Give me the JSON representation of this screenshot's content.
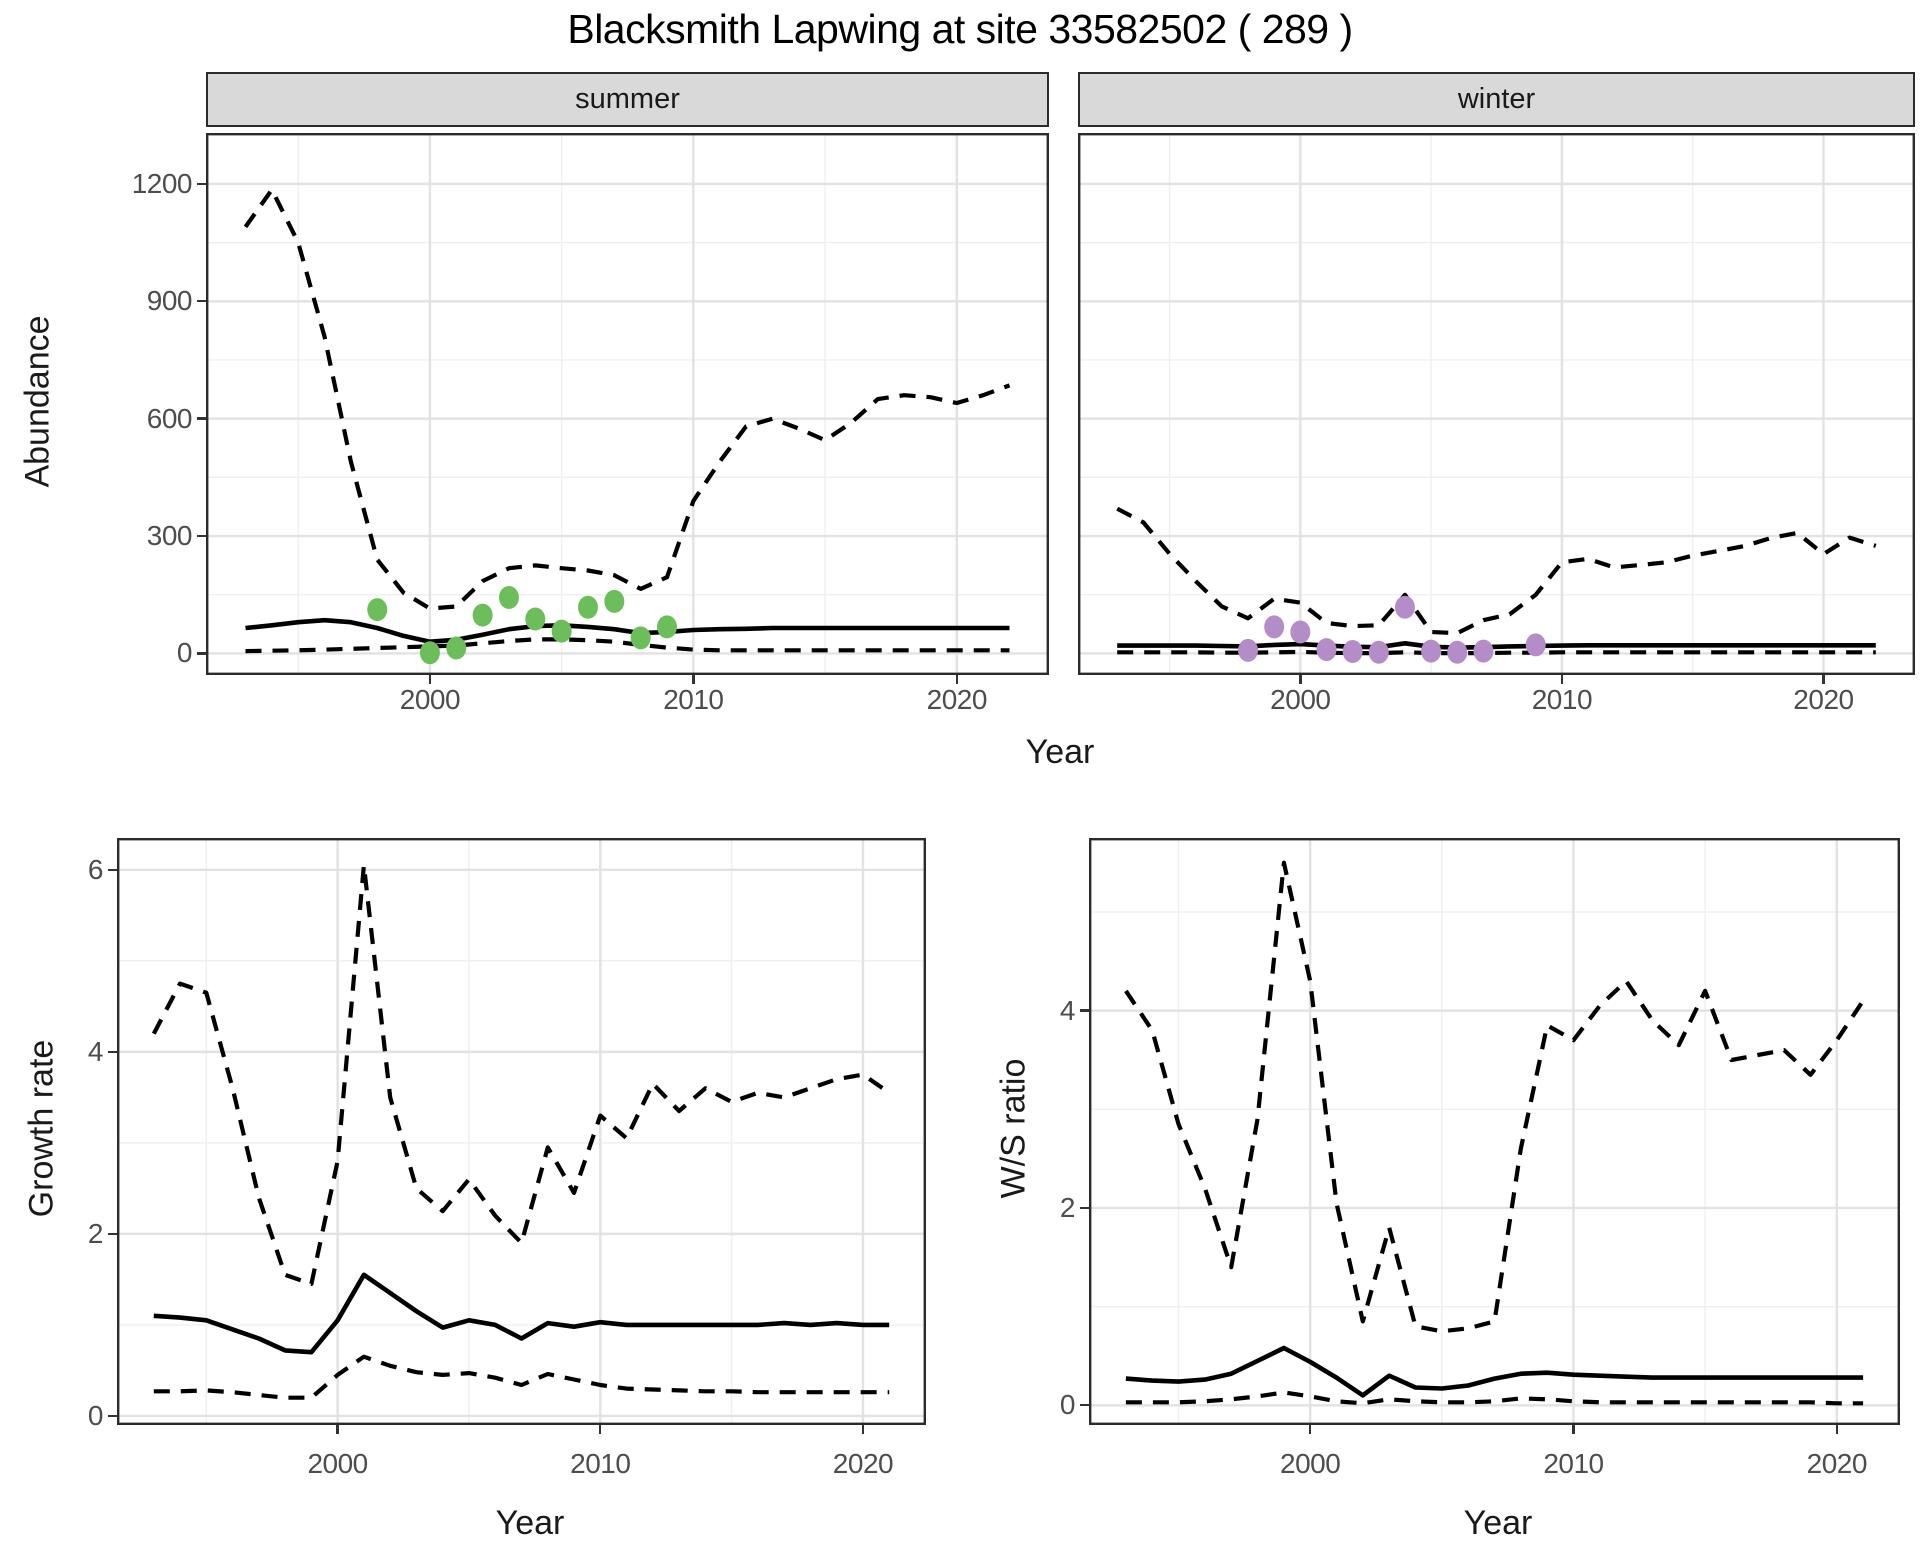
{
  "title": "Blacksmith Lapwing at site 33582502 ( 289 )",
  "colors": {
    "summer_points": "#6cbe5b",
    "winter_points": "#b48cc8",
    "line": "#000000",
    "grid_major": "#e2e2e2",
    "grid_minor": "#efefef",
    "panel_border": "#2b2b2b",
    "strip_bg": "#d9d9d9",
    "axis_text": "#4d4d4d"
  },
  "chart_data": [
    {
      "id": "abundance-summer",
      "type": "line",
      "facet_label": "summer",
      "xlabel": "Year",
      "ylabel": "Abundance",
      "xlim": [
        1991.5,
        2023.5
      ],
      "ylim": [
        -55,
        1330
      ],
      "x_ticks": [
        2000,
        2010,
        2020
      ],
      "x_minor": [
        1995,
        2005,
        2015
      ],
      "y_ticks": [
        0,
        300,
        600,
        900,
        1200
      ],
      "y_minor": [
        150,
        450,
        750,
        1050
      ],
      "x": [
        1993,
        1994,
        1995,
        1996,
        1997,
        1998,
        1999,
        2000,
        2001,
        2002,
        2003,
        2004,
        2005,
        2006,
        2007,
        2008,
        2009,
        2010,
        2011,
        2012,
        2013,
        2014,
        2015,
        2016,
        2017,
        2018,
        2019,
        2020,
        2021,
        2022
      ],
      "series": [
        {
          "name": "upper_95ci",
          "style": "dashed",
          "values": [
            1090,
            1185,
            1050,
            810,
            490,
            240,
            155,
            115,
            120,
            185,
            218,
            225,
            218,
            212,
            200,
            165,
            195,
            390,
            490,
            580,
            600,
            575,
            545,
            590,
            650,
            660,
            655,
            640,
            660,
            685
          ]
        },
        {
          "name": "median",
          "style": "solid",
          "values": [
            65,
            72,
            80,
            85,
            80,
            65,
            45,
            30,
            35,
            48,
            62,
            70,
            72,
            68,
            62,
            52,
            55,
            60,
            62,
            63,
            65,
            65,
            65,
            65,
            65,
            65,
            65,
            65,
            65,
            65
          ]
        },
        {
          "name": "lower_95ci",
          "style": "dashed",
          "values": [
            6,
            7,
            8,
            10,
            12,
            14,
            16,
            18,
            20,
            26,
            32,
            36,
            36,
            34,
            30,
            22,
            15,
            10,
            8,
            8,
            8,
            8,
            8,
            8,
            8,
            8,
            8,
            8,
            8,
            8
          ]
        }
      ],
      "points": {
        "name": "observed-counts-summer",
        "color_key": "summer_points",
        "x": [
          1998,
          2000,
          2001,
          2002,
          2003,
          2004,
          2005,
          2006,
          2007,
          2008,
          2009
        ],
        "y": [
          112,
          2,
          14,
          98,
          143,
          88,
          57,
          118,
          133,
          40,
          68
        ]
      }
    },
    {
      "id": "abundance-winter",
      "type": "line",
      "facet_label": "winter",
      "xlabel": "Year",
      "ylabel": "Abundance",
      "xlim": [
        1991.5,
        2023.5
      ],
      "ylim": [
        -55,
        1330
      ],
      "x_ticks": [
        2000,
        2010,
        2020
      ],
      "x_minor": [
        1995,
        2005,
        2015
      ],
      "y_ticks": [
        0,
        300,
        600,
        900,
        1200
      ],
      "y_minor": [
        150,
        450,
        750,
        1050
      ],
      "x": [
        1993,
        1994,
        1995,
        1996,
        1997,
        1998,
        1999,
        2000,
        2001,
        2002,
        2003,
        2004,
        2005,
        2006,
        2007,
        2008,
        2009,
        2010,
        2011,
        2012,
        2013,
        2014,
        2015,
        2016,
        2017,
        2018,
        2019,
        2020,
        2021,
        2022
      ],
      "series": [
        {
          "name": "upper_95ci",
          "style": "dashed",
          "values": [
            370,
            335,
            255,
            185,
            120,
            90,
            140,
            130,
            78,
            70,
            72,
            150,
            55,
            52,
            85,
            100,
            150,
            233,
            242,
            220,
            226,
            233,
            250,
            262,
            275,
            295,
            308,
            254,
            296,
            275
          ]
        },
        {
          "name": "median",
          "style": "solid",
          "values": [
            20,
            20,
            20,
            20,
            19,
            18,
            22,
            24,
            20,
            17,
            16,
            26,
            17,
            15,
            16,
            18,
            19,
            20,
            21,
            21,
            21,
            21,
            21,
            21,
            21,
            21,
            21,
            21,
            21,
            21
          ]
        },
        {
          "name": "lower_95ci",
          "style": "dashed",
          "values": [
            3,
            3,
            3,
            3,
            2,
            2,
            3,
            4,
            2,
            1,
            1,
            3,
            1,
            1,
            1,
            2,
            2,
            3,
            3,
            3,
            3,
            3,
            3,
            3,
            3,
            3,
            3,
            3,
            3,
            3
          ]
        }
      ],
      "points": {
        "name": "observed-counts-winter",
        "color_key": "winter_points",
        "x": [
          1998,
          1999,
          2000,
          2001,
          2002,
          2003,
          2004,
          2005,
          2006,
          2007,
          2009
        ],
        "y": [
          8,
          68,
          55,
          10,
          5,
          3,
          118,
          6,
          3,
          6,
          22
        ]
      }
    },
    {
      "id": "growth-rate",
      "type": "line",
      "facet_label": "",
      "xlabel": "Year",
      "ylabel": "Growth rate",
      "xlim": [
        1991.6,
        2022.4
      ],
      "ylim": [
        -0.1,
        6.35
      ],
      "x_ticks": [
        2000,
        2010,
        2020
      ],
      "x_minor": [
        1995,
        2005,
        2015
      ],
      "y_ticks": [
        0,
        2,
        4,
        6
      ],
      "y_minor": [
        1,
        3,
        5
      ],
      "x": [
        1993,
        1994,
        1995,
        1996,
        1997,
        1998,
        1999,
        2000,
        2001,
        2002,
        2003,
        2004,
        2005,
        2006,
        2007,
        2008,
        2009,
        2010,
        2011,
        2012,
        2013,
        2014,
        2015,
        2016,
        2017,
        2018,
        2019,
        2020,
        2021
      ],
      "series": [
        {
          "name": "upper_95ci",
          "style": "dashed",
          "values": [
            4.2,
            4.75,
            4.65,
            3.6,
            2.4,
            1.55,
            1.45,
            2.8,
            6.05,
            3.5,
            2.5,
            2.25,
            2.6,
            2.2,
            1.9,
            2.95,
            2.45,
            3.3,
            3.05,
            3.65,
            3.35,
            3.6,
            3.45,
            3.55,
            3.5,
            3.6,
            3.7,
            3.75,
            3.55
          ]
        },
        {
          "name": "median",
          "style": "solid",
          "values": [
            1.1,
            1.08,
            1.05,
            0.95,
            0.85,
            0.72,
            0.7,
            1.05,
            1.55,
            1.35,
            1.15,
            0.97,
            1.05,
            1.0,
            0.85,
            1.02,
            0.98,
            1.03,
            1.0,
            1.0,
            1.0,
            1.0,
            1.0,
            1.0,
            1.02,
            1.0,
            1.02,
            1.0,
            1.0
          ]
        },
        {
          "name": "lower_95ci",
          "style": "dashed",
          "values": [
            0.27,
            0.27,
            0.28,
            0.26,
            0.23,
            0.2,
            0.2,
            0.45,
            0.65,
            0.55,
            0.48,
            0.45,
            0.47,
            0.42,
            0.34,
            0.46,
            0.4,
            0.34,
            0.3,
            0.29,
            0.28,
            0.27,
            0.27,
            0.26,
            0.26,
            0.26,
            0.26,
            0.26,
            0.26
          ]
        }
      ]
    },
    {
      "id": "ws-ratio",
      "type": "line",
      "facet_label": "",
      "xlabel": "Year",
      "ylabel": "W/S ratio",
      "xlim": [
        1991.6,
        2022.4
      ],
      "ylim": [
        -0.2,
        5.75
      ],
      "x_ticks": [
        2000,
        2010,
        2020
      ],
      "x_minor": [
        1995,
        2005,
        2015
      ],
      "y_ticks": [
        0,
        2,
        4
      ],
      "y_minor": [
        1,
        3,
        5
      ],
      "x": [
        1993,
        1994,
        1995,
        1996,
        1997,
        1998,
        1999,
        2000,
        2001,
        2002,
        2003,
        2004,
        2005,
        2006,
        2007,
        2008,
        2009,
        2010,
        2011,
        2012,
        2013,
        2014,
        2015,
        2016,
        2017,
        2018,
        2019,
        2020,
        2021
      ],
      "series": [
        {
          "name": "upper_95ci",
          "style": "dashed",
          "values": [
            4.2,
            3.8,
            2.85,
            2.2,
            1.4,
            2.9,
            5.5,
            4.3,
            2.05,
            0.85,
            1.8,
            0.8,
            0.75,
            0.78,
            0.85,
            2.6,
            3.85,
            3.7,
            4.05,
            4.3,
            3.9,
            3.65,
            4.2,
            3.5,
            3.55,
            3.6,
            3.35,
            3.7,
            4.1
          ]
        },
        {
          "name": "median",
          "style": "solid",
          "values": [
            0.27,
            0.25,
            0.24,
            0.26,
            0.32,
            0.45,
            0.58,
            0.44,
            0.28,
            0.1,
            0.3,
            0.18,
            0.17,
            0.2,
            0.27,
            0.32,
            0.33,
            0.31,
            0.3,
            0.29,
            0.28,
            0.28,
            0.28,
            0.28,
            0.28,
            0.28,
            0.28,
            0.28,
            0.28
          ]
        },
        {
          "name": "lower_95ci",
          "style": "dashed",
          "values": [
            0.03,
            0.03,
            0.03,
            0.04,
            0.06,
            0.09,
            0.13,
            0.09,
            0.04,
            0.02,
            0.06,
            0.04,
            0.03,
            0.03,
            0.04,
            0.07,
            0.06,
            0.04,
            0.03,
            0.03,
            0.03,
            0.03,
            0.03,
            0.03,
            0.03,
            0.03,
            0.03,
            0.02,
            0.02
          ]
        }
      ]
    }
  ]
}
